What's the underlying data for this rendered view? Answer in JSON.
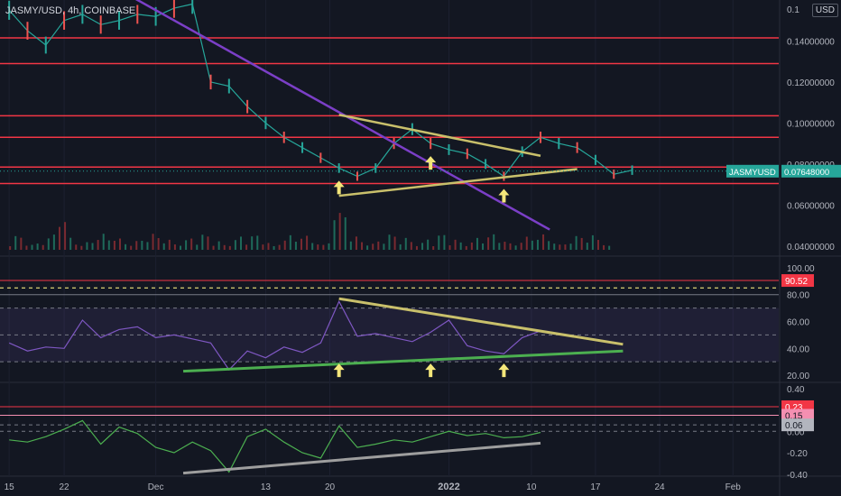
{
  "header": {
    "symbol_title": "JASMY/USD, 4h, COINBASE",
    "currency_badge": "USD"
  },
  "chart_data": [
    {
      "type": "line",
      "name": "price",
      "title": "JASMY/USD, 4h, COINBASE",
      "ylim": [
        0.0355,
        0.16
      ],
      "y_ticks": [
        "0.14000000",
        "0.12000000",
        "0.10000000",
        "0.08000000",
        "0.06000000",
        "0.04000000"
      ],
      "y_tick_values": [
        0.14,
        0.12,
        0.1,
        0.08,
        0.06,
        0.04
      ],
      "top_tick_partial": "0.1",
      "last_price_label": {
        "symbol": "JASMYUSD",
        "value": "0.07648000",
        "y": 0.0765
      },
      "price_series_x": [
        0,
        2,
        4,
        6,
        8,
        10,
        12,
        14,
        16,
        18,
        20,
        22,
        24,
        26,
        28,
        30,
        32,
        34,
        36,
        38,
        40,
        42,
        44,
        46,
        48,
        50,
        52,
        54,
        56,
        58,
        60,
        62,
        64,
        66,
        68
      ],
      "price_series": [
        0.155,
        0.145,
        0.138,
        0.15,
        0.153,
        0.148,
        0.15,
        0.153,
        0.152,
        0.156,
        0.158,
        0.12,
        0.118,
        0.108,
        0.1,
        0.093,
        0.088,
        0.083,
        0.078,
        0.074,
        0.078,
        0.09,
        0.097,
        0.09,
        0.087,
        0.085,
        0.08,
        0.074,
        0.086,
        0.093,
        0.09,
        0.088,
        0.082,
        0.075,
        0.077
      ],
      "horizontal_levels": [
        0.1415,
        0.129,
        0.1035,
        0.093,
        0.0785,
        0.0705
      ],
      "trend_lines": [
        {
          "color": "#7b3fc7",
          "from": [
            12,
            0.165
          ],
          "to": [
            59,
            0.048
          ]
        },
        {
          "color": "#c9c06b",
          "from": [
            36,
            0.104
          ],
          "to": [
            58,
            0.084
          ]
        },
        {
          "color": "#c9c06b",
          "from": [
            36,
            0.0645
          ],
          "to": [
            62,
            0.0775
          ]
        }
      ],
      "markers_x": [
        36,
        46,
        54
      ],
      "x_labels": [
        "15",
        "22",
        "Dec",
        "13",
        "20",
        "2022",
        "10",
        "17",
        "24",
        "Feb"
      ],
      "x_label_values": [
        0,
        6,
        16,
        28,
        35,
        48,
        57,
        64,
        71,
        79
      ],
      "xlim": [
        -1,
        84
      ]
    },
    {
      "type": "line",
      "name": "oscillator-1",
      "ylim": [
        16,
        106
      ],
      "y_ticks": [
        "100.00",
        "80.00",
        "60.00",
        "40.00",
        "20.00"
      ],
      "y_tick_values": [
        100,
        80,
        60,
        40,
        20
      ],
      "reference_lines": [
        90.52,
        85,
        80,
        70,
        50,
        30
      ],
      "level_badge": "90.52",
      "series_x": [
        0,
        2,
        4,
        6,
        8,
        10,
        12,
        14,
        16,
        18,
        20,
        22,
        24,
        26,
        28,
        30,
        32,
        34,
        36,
        38,
        40,
        42,
        44,
        46,
        48,
        50,
        52,
        54,
        56,
        58
      ],
      "series": [
        44,
        38,
        41,
        40,
        61,
        48,
        54,
        56,
        48,
        50,
        47,
        44,
        24,
        38,
        33,
        41,
        37,
        44,
        75,
        49,
        51,
        48,
        45,
        52,
        61,
        42,
        38,
        36,
        48,
        53
      ],
      "trend_lines": [
        {
          "color": "#c9c06b",
          "from": [
            36,
            77
          ],
          "to": [
            67,
            43
          ]
        },
        {
          "color": "#4caf50",
          "from": [
            19,
            23
          ],
          "to": [
            67,
            38
          ]
        }
      ],
      "markers_x": [
        36,
        46,
        54
      ]
    },
    {
      "type": "line",
      "name": "oscillator-2",
      "ylim": [
        -0.41,
        0.44
      ],
      "y_ticks": [
        "0.40",
        "0.00",
        "-0.20",
        "-0.40"
      ],
      "y_tick_values": [
        0.4,
        0.0,
        -0.2,
        -0.4
      ],
      "reference_lines": [
        0.23,
        0.15,
        0.06
      ],
      "level_badges": [
        "0.23",
        "0.15",
        "0.06"
      ],
      "series_x": [
        0,
        2,
        4,
        6,
        8,
        10,
        12,
        14,
        16,
        18,
        20,
        22,
        24,
        26,
        28,
        30,
        32,
        34,
        36,
        38,
        40,
        42,
        44,
        46,
        48,
        50,
        52,
        54,
        56,
        58
      ],
      "series": [
        -0.08,
        -0.1,
        -0.05,
        0.02,
        0.1,
        -0.12,
        0.04,
        -0.02,
        -0.15,
        -0.2,
        -0.1,
        -0.18,
        -0.38,
        -0.05,
        0.02,
        -0.1,
        -0.2,
        -0.25,
        0.05,
        -0.15,
        -0.12,
        -0.08,
        -0.1,
        -0.05,
        0.0,
        -0.04,
        -0.02,
        -0.06,
        -0.05,
        -0.01
      ],
      "trend_lines": [
        {
          "color": "#9e9e9e",
          "from": [
            19,
            -0.39
          ],
          "to": [
            58,
            -0.11
          ]
        }
      ]
    }
  ]
}
